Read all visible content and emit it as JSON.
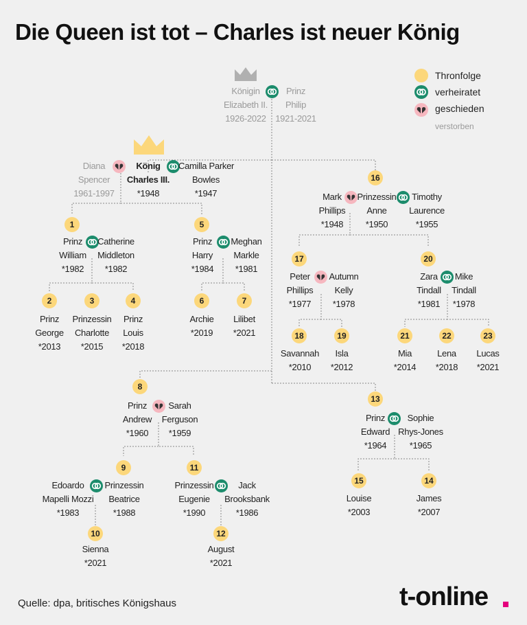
{
  "title": "Die Queen ist tot – Charles ist neuer König",
  "legend": {
    "succession": "Thronfolge",
    "married": "verheiratet",
    "divorced": "geschieden",
    "deceased": "verstorben"
  },
  "colors": {
    "succession_badge": "#fcd77b",
    "married_ring": "#1c8c6c",
    "divorced_heart": "#f6b7bf",
    "deceased_text": "#9a9a9a",
    "crown_grey": "#b0b0b0",
    "crown_gold": "#fcd77b",
    "brand_dot": "#e5007d"
  },
  "people": {
    "elizabeth": [
      "Königin",
      "Elizabeth II.",
      "1926-2022"
    ],
    "philip": [
      "Prinz",
      "Philip",
      "1921-2021"
    ],
    "diana": [
      "Diana",
      "Spencer",
      "1961-1997"
    ],
    "charles": [
      "König",
      "Charles III.",
      "*1948"
    ],
    "camilla": [
      "Camilla Parker",
      "Bowles",
      "*1947"
    ],
    "william": [
      "Prinz",
      "William",
      "*1982"
    ],
    "catherine": [
      "Catherine",
      "Middleton",
      "*1982"
    ],
    "harry": [
      "Prinz",
      "Harry",
      "*1984"
    ],
    "meghan": [
      "Meghan",
      "Markle",
      "*1981"
    ],
    "george": [
      "Prinz",
      "George",
      "*2013"
    ],
    "charlotte": [
      "Prinzessin",
      "Charlotte",
      "*2015"
    ],
    "louis": [
      "Prinz",
      "Louis",
      "*2018"
    ],
    "archie": [
      "Archie",
      "*2019"
    ],
    "lilibet": [
      "Lilibet",
      "*2021"
    ],
    "mark": [
      "Mark",
      "Phillips",
      "*1948"
    ],
    "anne": [
      "Prinzessin",
      "Anne",
      "*1950"
    ],
    "timothy": [
      "Timothy",
      "Laurence",
      "*1955"
    ],
    "peter": [
      "Peter",
      "Phillips",
      "*1977"
    ],
    "autumn": [
      "Autumn",
      "Kelly",
      "*1978"
    ],
    "zara": [
      "Zara",
      "Tindall",
      "*1981"
    ],
    "mike": [
      "Mike",
      "Tindall",
      "*1978"
    ],
    "savannah": [
      "Savannah",
      "*2010"
    ],
    "isla": [
      "Isla",
      "*2012"
    ],
    "mia": [
      "Mia",
      "*2014"
    ],
    "lena": [
      "Lena",
      "*2018"
    ],
    "lucas": [
      "Lucas",
      "*2021"
    ],
    "andrew": [
      "Prinz",
      "Andrew",
      "*1960"
    ],
    "sarah": [
      "Sarah",
      "Ferguson",
      "*1959"
    ],
    "edoardo": [
      "Edoardo",
      "Mapelli Mozzi",
      "*1983"
    ],
    "beatrice": [
      "Prinzessin",
      "Beatrice",
      "*1988"
    ],
    "eugenie": [
      "Prinzessin",
      "Eugenie",
      "*1990"
    ],
    "jack": [
      "Jack",
      "Brooksbank",
      "*1986"
    ],
    "sienna": [
      "Sienna",
      "*2021"
    ],
    "august": [
      "August",
      "*2021"
    ],
    "edward": [
      "Prinz",
      "Edward",
      "*1964"
    ],
    "sophie": [
      "Sophie",
      "Rhys-Jones",
      "*1965"
    ],
    "louise": [
      "Louise",
      "*2003"
    ],
    "james": [
      "James",
      "*2007"
    ]
  },
  "succession": {
    "william": "1",
    "george": "2",
    "charlotte": "3",
    "louis": "4",
    "harry": "5",
    "archie": "6",
    "lilibet": "7",
    "andrew": "8",
    "beatrice": "9",
    "sienna": "10",
    "eugenie": "11",
    "august": "12",
    "edward": "13",
    "james": "14",
    "louise": "15",
    "anne": "16",
    "peter": "17",
    "savannah": "18",
    "isla": "19",
    "zara": "20",
    "mia": "21",
    "lena": "22",
    "lucas": "23"
  },
  "footer": {
    "source": "Quelle: dpa, britisches Königshaus",
    "logo": "t-online"
  }
}
